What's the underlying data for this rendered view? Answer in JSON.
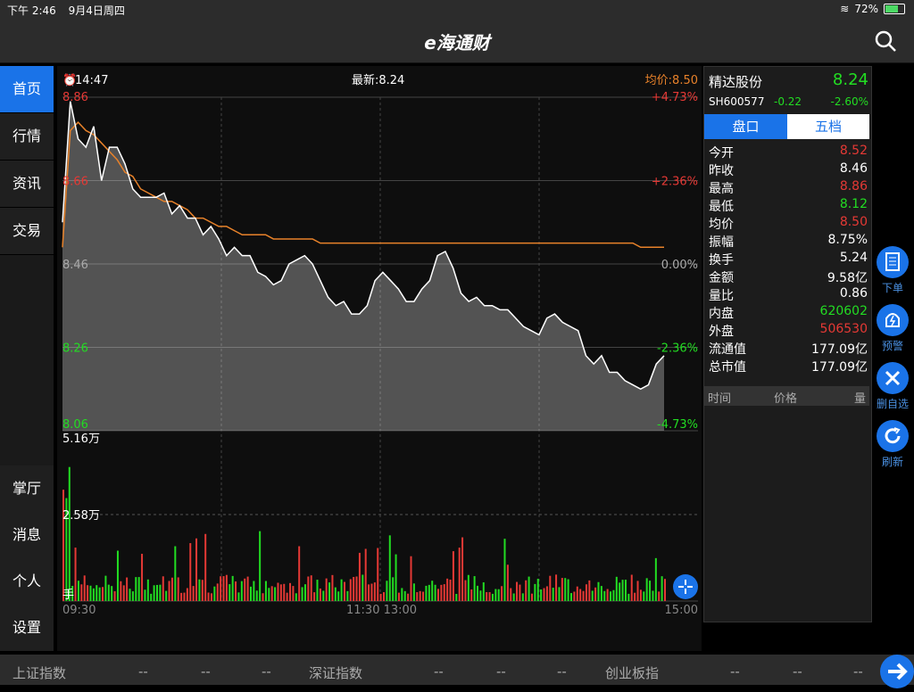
{
  "status": {
    "time": "下午 2:46",
    "date": "9月4日周四",
    "battery": "72%"
  },
  "header": {
    "title": "e海通财"
  },
  "sidebar": {
    "top": [
      "首页",
      "行情",
      "资讯",
      "交易"
    ],
    "bottom": [
      "掌厅",
      "消息",
      "个人",
      "设置"
    ]
  },
  "chart": {
    "time": "14:47",
    "latest": "最新:8.24",
    "avg_label": "均价:8.50",
    "vol_unit": "手",
    "vol_labels": [
      "5.16万",
      "2.58万"
    ],
    "x_ticks": [
      "09:30",
      "11:30 13:00",
      "15:00"
    ]
  },
  "stock": {
    "name": "精达股份",
    "price": "8.24",
    "code": "SH600577",
    "change": "-0.22",
    "pct": "-2.60%",
    "tabs": [
      "盘口",
      "五档"
    ],
    "stats": [
      {
        "k": "今开",
        "v": "8.52",
        "c": "#e53935"
      },
      {
        "k": "昨收",
        "v": "8.46",
        "c": "#ffffff"
      },
      {
        "k": "最高",
        "v": "8.86",
        "c": "#e53935"
      },
      {
        "k": "最低",
        "v": "8.12",
        "c": "#22dd22"
      },
      {
        "k": "均价",
        "v": "8.50",
        "c": "#e53935"
      },
      {
        "k": "振幅",
        "v": "8.75%",
        "c": "#ffffff"
      },
      {
        "k": "换手",
        "v": "5.24",
        "c": "#ffffff"
      },
      {
        "k": "金额",
        "v": "9.58亿",
        "c": "#ffffff"
      },
      {
        "k": "量比",
        "v": "0.86",
        "c": "#ffffff"
      },
      {
        "k": "内盘",
        "v": "620602",
        "c": "#22dd22"
      },
      {
        "k": "外盘",
        "v": "506530",
        "c": "#e53935"
      },
      {
        "k": "流通值",
        "v": "177.09亿",
        "c": "#ffffff"
      },
      {
        "k": "总市值",
        "v": "177.09亿",
        "c": "#ffffff"
      }
    ],
    "trade_headers": [
      "时间",
      "价格",
      "量"
    ]
  },
  "actions": [
    "下单",
    "预警",
    "删自选",
    "刷新"
  ],
  "bottom": {
    "sh": "上证指数",
    "sz": "深证指数",
    "cy": "创业板指",
    "dash": "--"
  },
  "chart_data": {
    "type": "line",
    "title": "",
    "y_left": [
      "8.86",
      "8.66",
      "8.46",
      "8.26",
      "8.06"
    ],
    "y_right": [
      "+4.73%",
      "+2.36%",
      "0.00%",
      "-2.36%",
      "-4.73%"
    ],
    "ylim": [
      8.06,
      8.86
    ],
    "base": 8.46,
    "series": [
      {
        "name": "最新",
        "color": "#ffffff",
        "values": [
          8.56,
          8.85,
          8.76,
          8.74,
          8.79,
          8.66,
          8.74,
          8.74,
          8.7,
          8.64,
          8.62,
          8.62,
          8.62,
          8.63,
          8.58,
          8.6,
          8.57,
          8.57,
          8.53,
          8.55,
          8.52,
          8.48,
          8.5,
          8.48,
          8.48,
          8.44,
          8.43,
          8.41,
          8.42,
          8.46,
          8.47,
          8.48,
          8.46,
          8.42,
          8.38,
          8.36,
          8.37,
          8.34,
          8.34,
          8.36,
          8.42,
          8.44,
          8.42,
          8.4,
          8.37,
          8.37,
          8.4,
          8.42,
          8.48,
          8.49,
          8.45,
          8.39,
          8.37,
          8.38,
          8.36,
          8.36,
          8.35,
          8.35,
          8.33,
          8.31,
          8.3,
          8.29,
          8.33,
          8.34,
          8.32,
          8.31,
          8.3,
          8.24,
          8.22,
          8.24,
          8.2,
          8.2,
          8.18,
          8.17,
          8.16,
          8.17,
          8.22,
          8.24
        ]
      },
      {
        "name": "均价",
        "color": "#e8822a",
        "values": [
          8.5,
          8.78,
          8.8,
          8.78,
          8.77,
          8.75,
          8.73,
          8.71,
          8.68,
          8.67,
          8.64,
          8.63,
          8.62,
          8.61,
          8.61,
          8.6,
          8.59,
          8.57,
          8.57,
          8.56,
          8.55,
          8.55,
          8.54,
          8.53,
          8.53,
          8.53,
          8.53,
          8.52,
          8.52,
          8.52,
          8.52,
          8.52,
          8.52,
          8.51,
          8.51,
          8.51,
          8.51,
          8.51,
          8.51,
          8.51,
          8.51,
          8.51,
          8.51,
          8.51,
          8.51,
          8.51,
          8.51,
          8.51,
          8.51,
          8.51,
          8.51,
          8.51,
          8.51,
          8.51,
          8.51,
          8.51,
          8.51,
          8.51,
          8.51,
          8.51,
          8.51,
          8.51,
          8.51,
          8.51,
          8.51,
          8.51,
          8.51,
          8.51,
          8.51,
          8.51,
          8.51,
          8.51,
          8.51,
          8.51,
          8.5,
          8.5,
          8.5,
          8.5
        ]
      }
    ],
    "volume_max": 51600
  }
}
